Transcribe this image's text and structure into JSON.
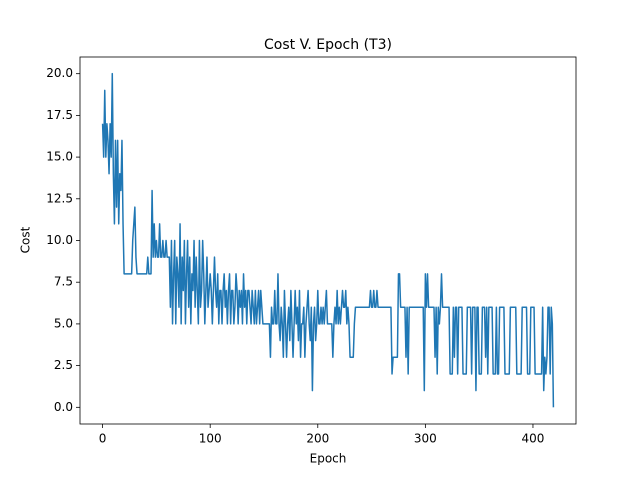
{
  "chart_data": {
    "type": "line",
    "title": "Cost V. Epoch (T3)",
    "x_label": "Epoch",
    "y_label": "Cost",
    "color": "#1f77b4",
    "xlim": [
      -21,
      440
    ],
    "ylim": [
      -1,
      21
    ],
    "xticks": [
      0,
      100,
      200,
      300,
      400
    ],
    "yticks": [
      {
        "value": 0,
        "label": "0.0"
      },
      {
        "value": 2.5,
        "label": "2.5"
      },
      {
        "value": 5,
        "label": "5.0"
      },
      {
        "value": 7.5,
        "label": "7.5"
      },
      {
        "value": 10,
        "label": "10.0"
      },
      {
        "value": 12.5,
        "label": "12.5"
      },
      {
        "value": 15,
        "label": "15.0"
      },
      {
        "value": 17.5,
        "label": "17.5"
      },
      {
        "value": 20,
        "label": "20.0"
      }
    ],
    "x": [
      0,
      1,
      2,
      3,
      4,
      5,
      6,
      7,
      8,
      9,
      10,
      11,
      12,
      13,
      14,
      15,
      16,
      17,
      18,
      19,
      20,
      21,
      22,
      23,
      24,
      25,
      26,
      27,
      28,
      29,
      30,
      31,
      32,
      33,
      34,
      35,
      36,
      37,
      38,
      39,
      40,
      41,
      42,
      43,
      44,
      45,
      46,
      47,
      48,
      49,
      50,
      51,
      52,
      53,
      54,
      55,
      56,
      57,
      58,
      59,
      60,
      61,
      62,
      63,
      64,
      65,
      66,
      67,
      68,
      69,
      70,
      71,
      72,
      73,
      74,
      75,
      76,
      77,
      78,
      79,
      80,
      81,
      82,
      83,
      84,
      85,
      86,
      87,
      88,
      89,
      90,
      91,
      92,
      93,
      94,
      95,
      96,
      97,
      98,
      99,
      100,
      101,
      102,
      103,
      104,
      105,
      106,
      107,
      108,
      109,
      110,
      111,
      112,
      113,
      114,
      115,
      116,
      117,
      118,
      119,
      120,
      121,
      122,
      123,
      124,
      125,
      126,
      127,
      128,
      129,
      130,
      131,
      132,
      133,
      134,
      135,
      136,
      137,
      138,
      139,
      140,
      141,
      142,
      143,
      144,
      145,
      146,
      147,
      148,
      149,
      150,
      151,
      152,
      153,
      154,
      155,
      156,
      157,
      158,
      159,
      160,
      161,
      162,
      163,
      164,
      165,
      166,
      167,
      168,
      169,
      170,
      171,
      172,
      173,
      174,
      175,
      176,
      177,
      178,
      179,
      180,
      181,
      182,
      183,
      184,
      185,
      186,
      187,
      188,
      189,
      190,
      191,
      192,
      193,
      194,
      195,
      196,
      197,
      198,
      199,
      200,
      201,
      202,
      203,
      204,
      205,
      206,
      207,
      208,
      209,
      210,
      211,
      212,
      213,
      214,
      215,
      216,
      217,
      218,
      219,
      220,
      221,
      222,
      223,
      224,
      225,
      226,
      227,
      228,
      229,
      230,
      231,
      232,
      233,
      234,
      235,
      236,
      237,
      238,
      239,
      240,
      241,
      242,
      243,
      244,
      245,
      246,
      247,
      248,
      249,
      250,
      251,
      252,
      253,
      254,
      255,
      256,
      257,
      258,
      259,
      260,
      261,
      262,
      263,
      264,
      265,
      266,
      267,
      268,
      269,
      270,
      271,
      272,
      273,
      274,
      275,
      276,
      277,
      278,
      279,
      280,
      281,
      282,
      283,
      284,
      285,
      286,
      287,
      288,
      289,
      290,
      291,
      292,
      293,
      294,
      295,
      296,
      297,
      298,
      299,
      300,
      301,
      302,
      303,
      304,
      305,
      306,
      307,
      308,
      309,
      310,
      311,
      312,
      313,
      314,
      315,
      316,
      317,
      318,
      319,
      320,
      321,
      322,
      323,
      324,
      325,
      326,
      327,
      328,
      329,
      330,
      331,
      332,
      333,
      334,
      335,
      336,
      337,
      338,
      339,
      340,
      341,
      342,
      343,
      344,
      345,
      346,
      347,
      348,
      349,
      350,
      351,
      352,
      353,
      354,
      355,
      356,
      357,
      358,
      359,
      360,
      361,
      362,
      363,
      364,
      365,
      366,
      367,
      368,
      369,
      370,
      371,
      372,
      373,
      374,
      375,
      376,
      377,
      378,
      379,
      380,
      381,
      382,
      383,
      384,
      385,
      386,
      387,
      388,
      389,
      390,
      391,
      392,
      393,
      394,
      395,
      396,
      397,
      398,
      399,
      400,
      401,
      402,
      403,
      404,
      405,
      406,
      407,
      408,
      409,
      410,
      411,
      412,
      413,
      414,
      415,
      416,
      417,
      418,
      419
    ],
    "values": [
      17,
      15,
      19,
      15,
      17,
      16,
      14,
      17,
      15,
      20,
      14,
      11,
      16,
      12,
      16,
      11,
      14,
      13,
      16,
      11,
      8,
      8,
      8,
      8,
      8,
      8,
      8,
      8,
      10,
      11,
      12,
      9,
      8,
      8,
      8,
      8,
      8,
      8,
      8,
      8,
      8,
      8,
      9,
      8,
      8,
      8,
      13,
      9,
      11,
      9,
      10,
      9,
      9,
      11,
      9,
      9,
      10,
      9,
      9,
      10,
      9,
      9,
      9,
      6,
      10,
      5,
      8,
      10,
      5,
      9,
      8,
      6,
      11,
      5,
      9,
      7,
      10,
      5,
      8,
      10,
      6,
      9,
      5,
      8,
      7,
      10,
      6,
      9,
      7,
      5,
      10,
      6,
      7,
      10,
      8,
      5,
      7,
      9,
      6,
      7,
      8,
      7,
      5,
      7,
      9,
      7,
      6,
      8,
      5,
      7,
      7,
      5,
      7,
      8,
      6,
      7,
      5,
      7,
      8,
      5,
      7,
      7,
      5,
      6,
      8,
      7,
      5,
      7,
      6,
      7,
      5,
      8,
      6,
      7,
      5,
      7,
      7,
      6,
      5,
      7,
      6,
      5,
      7,
      5,
      6,
      7,
      5,
      7,
      6,
      5,
      5,
      5,
      5,
      5,
      5,
      5,
      3,
      6,
      5,
      5,
      7,
      5,
      5,
      8,
      5,
      4,
      6,
      5,
      3,
      7,
      5,
      3,
      5,
      6,
      4,
      7,
      5,
      3,
      5,
      7,
      5,
      6,
      4,
      7,
      3,
      5,
      5,
      6,
      3,
      5,
      6,
      7,
      5,
      4,
      6,
      1,
      5,
      6,
      4,
      5,
      7,
      5,
      5,
      6,
      5,
      6,
      5,
      6,
      7,
      5,
      5,
      5,
      5,
      5,
      3,
      5,
      6,
      5,
      7,
      5,
      6,
      5,
      6,
      7,
      6,
      6,
      7,
      5,
      6,
      5,
      3,
      3,
      3,
      3,
      5,
      6,
      6,
      6,
      6,
      6,
      6,
      6,
      6,
      6,
      6,
      6,
      6,
      6,
      6,
      7,
      6,
      6,
      7,
      6,
      6,
      7,
      6,
      6,
      6,
      6,
      6,
      6,
      6,
      6,
      6,
      6,
      6,
      6,
      6,
      2,
      3,
      3,
      3,
      3,
      3,
      8,
      8,
      6,
      6,
      6,
      6,
      6,
      3,
      6,
      2,
      6,
      6,
      6,
      6,
      6,
      6,
      6,
      6,
      6,
      6,
      6,
      6,
      6,
      6,
      1,
      8,
      6,
      8,
      6,
      6,
      6,
      6,
      6,
      6,
      3,
      6,
      2,
      6,
      5,
      6,
      8,
      6,
      6,
      6,
      6,
      6,
      6,
      6,
      2,
      2,
      2,
      6,
      3,
      6,
      6,
      2,
      6,
      6,
      6,
      6,
      2,
      2,
      2,
      2,
      6,
      6,
      6,
      6,
      2,
      6,
      6,
      6,
      1,
      6,
      6,
      2,
      2,
      2,
      6,
      6,
      6,
      3,
      6,
      2,
      6,
      6,
      6,
      6,
      2,
      2,
      2,
      6,
      2,
      2,
      6,
      6,
      6,
      6,
      6,
      2,
      2,
      2,
      2,
      2,
      6,
      6,
      6,
      6,
      6,
      6,
      2,
      2,
      2,
      2,
      2,
      6,
      6,
      6,
      6,
      6,
      2,
      2,
      2,
      6,
      6,
      6,
      6,
      2,
      2,
      2,
      2,
      2,
      2,
      2,
      6,
      1,
      3,
      2,
      3,
      6,
      6,
      2,
      6,
      5,
      0
    ]
  }
}
